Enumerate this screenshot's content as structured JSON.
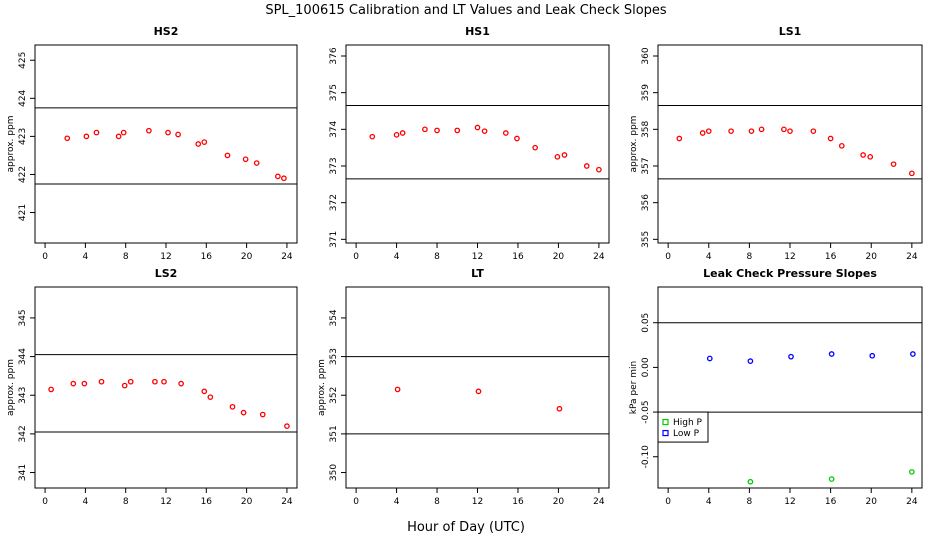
{
  "title": "SPL_100615  Calibration and LT Values and Leak Check Slopes",
  "xlabel": "Hour of Day (UTC)",
  "chart_data": [
    {
      "type": "scatter",
      "title": "HS2",
      "ylabel": "approx. ppm",
      "xlim": [
        -1,
        25
      ],
      "ylim": [
        420.2,
        425.4
      ],
      "xticks": [
        0,
        4,
        8,
        12,
        16,
        20,
        24
      ],
      "yticks": [
        421,
        422,
        423,
        424,
        425
      ],
      "hlines": [
        421.75,
        423.75
      ],
      "series": [
        {
          "name": "HS2",
          "color": "#ff0000",
          "marker": "circle",
          "x": [
            2.2,
            4.1,
            5.1,
            7.3,
            7.8,
            10.3,
            12.2,
            13.2,
            15.2,
            15.8,
            18.1,
            19.9,
            21.0,
            23.1,
            23.7
          ],
          "y": [
            422.95,
            423.0,
            423.1,
            423.0,
            423.1,
            423.15,
            423.1,
            423.05,
            422.8,
            422.85,
            422.5,
            422.4,
            422.3,
            421.95,
            421.9
          ]
        }
      ]
    },
    {
      "type": "scatter",
      "title": "HS1",
      "ylabel": "",
      "xlim": [
        -1,
        25
      ],
      "ylim": [
        370.9,
        376.3
      ],
      "xticks": [
        0,
        4,
        8,
        12,
        16,
        20,
        24
      ],
      "yticks": [
        371,
        372,
        373,
        374,
        375,
        376
      ],
      "hlines": [
        372.65,
        374.65
      ],
      "series": [
        {
          "name": "HS1",
          "color": "#ff0000",
          "marker": "circle",
          "x": [
            1.6,
            4.0,
            4.6,
            6.8,
            8.0,
            10.0,
            12.0,
            12.7,
            14.8,
            15.9,
            17.7,
            19.9,
            20.6,
            22.8,
            24.0
          ],
          "y": [
            373.8,
            373.85,
            373.9,
            374.0,
            373.97,
            373.97,
            374.05,
            373.95,
            373.9,
            373.75,
            373.5,
            373.25,
            373.3,
            373.0,
            372.9
          ]
        }
      ]
    },
    {
      "type": "scatter",
      "title": "LS1",
      "ylabel": "approx. ppm",
      "xlim": [
        -1,
        25
      ],
      "ylim": [
        354.9,
        360.3
      ],
      "xticks": [
        0,
        4,
        8,
        12,
        16,
        20,
        24
      ],
      "yticks": [
        355,
        356,
        357,
        358,
        359,
        360
      ],
      "hlines": [
        356.65,
        358.65
      ],
      "series": [
        {
          "name": "LS1",
          "color": "#ff0000",
          "marker": "circle",
          "x": [
            1.1,
            3.4,
            4.0,
            6.2,
            8.2,
            9.2,
            11.4,
            12.0,
            14.3,
            16.0,
            17.1,
            19.2,
            19.9,
            22.2,
            24.0
          ],
          "y": [
            357.75,
            357.9,
            357.95,
            357.95,
            357.95,
            358.0,
            358.0,
            357.95,
            357.95,
            357.75,
            357.55,
            357.3,
            357.25,
            357.05,
            356.8
          ]
        }
      ]
    },
    {
      "type": "scatter",
      "title": "LS2",
      "ylabel": "approx. ppm",
      "xlim": [
        -1,
        25
      ],
      "ylim": [
        340.6,
        345.8
      ],
      "xticks": [
        0,
        4,
        8,
        12,
        16,
        20,
        24
      ],
      "yticks": [
        341,
        342,
        343,
        344,
        345
      ],
      "hlines": [
        342.05,
        344.05
      ],
      "series": [
        {
          "name": "LS2",
          "color": "#ff0000",
          "marker": "circle",
          "x": [
            0.6,
            2.8,
            3.9,
            5.6,
            7.9,
            8.5,
            10.9,
            11.8,
            13.5,
            15.8,
            16.4,
            18.6,
            19.7,
            21.6,
            24.0
          ],
          "y": [
            343.15,
            343.3,
            343.3,
            343.35,
            343.25,
            343.35,
            343.35,
            343.35,
            343.3,
            343.1,
            342.95,
            342.7,
            342.55,
            342.5,
            342.2
          ]
        }
      ]
    },
    {
      "type": "scatter",
      "title": "LT",
      "ylabel": "approx. ppm",
      "xlim": [
        -1,
        25
      ],
      "ylim": [
        349.6,
        354.8
      ],
      "xticks": [
        0,
        4,
        8,
        12,
        16,
        20,
        24
      ],
      "yticks": [
        350,
        351,
        352,
        353,
        354
      ],
      "hlines": [
        351.0,
        353.0
      ],
      "series": [
        {
          "name": "LT",
          "color": "#ff0000",
          "marker": "circle",
          "x": [
            4.1,
            12.1,
            20.1
          ],
          "y": [
            352.15,
            352.1,
            351.65
          ]
        }
      ]
    },
    {
      "type": "scatter",
      "title": "Leak Check Pressure Slopes",
      "ylabel": "kPa per min",
      "xlim": [
        -1,
        25
      ],
      "ylim": [
        -0.135,
        0.09
      ],
      "xticks": [
        0,
        4,
        8,
        12,
        16,
        20,
        24
      ],
      "yticks": [
        0.05,
        0.0,
        -0.05,
        -0.1
      ],
      "ytick_labels": [
        "0.05",
        "0.00",
        "-0.05",
        "-0.10"
      ],
      "hlines": [
        0.05,
        -0.05
      ],
      "legend": {
        "position": "bottom-left",
        "entries": [
          {
            "label": "High P",
            "color": "#00cc00"
          },
          {
            "label": "Low P",
            "color": "#0000ff"
          }
        ]
      },
      "series": [
        {
          "name": "High P",
          "color": "#00cc00",
          "marker": "circle",
          "x": [
            8.1,
            16.1,
            24.0
          ],
          "y": [
            -0.128,
            -0.125,
            -0.117
          ]
        },
        {
          "name": "Low P",
          "color": "#0000ff",
          "marker": "circle",
          "x": [
            4.1,
            8.1,
            12.1,
            16.1,
            20.1,
            24.1
          ],
          "y": [
            0.01,
            0.007,
            0.012,
            0.015,
            0.013,
            0.015
          ]
        }
      ]
    }
  ]
}
